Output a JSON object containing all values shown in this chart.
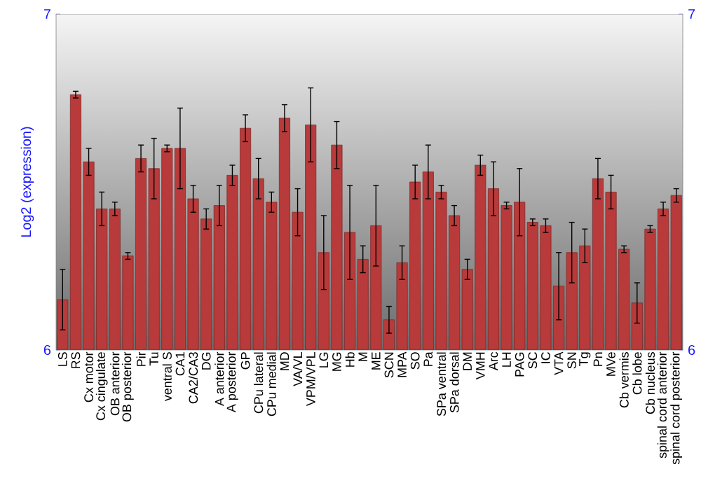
{
  "chart_data": {
    "type": "bar",
    "ylabel": "Log2 (expression)",
    "categories": [
      "LS",
      "RS",
      "Cx motor",
      "Cx cingulate",
      "OB anterior",
      "OB posterior",
      "Pir",
      "Tu",
      "ventral S",
      "CA1",
      "CA2/CA3",
      "DG",
      "A anterior",
      "A posterior",
      "GP",
      "CPu lateral",
      "CPu medial",
      "MD",
      "VA/VL",
      "VPM/VPL",
      "LG",
      "MG",
      "Hb",
      "M",
      "ME",
      "SCN",
      "MPA",
      "SO",
      "Pa",
      "SPa ventral",
      "SPa dorsal",
      "DM",
      "VMH",
      "Arc",
      "LH",
      "PAG",
      "SC",
      "IC",
      "VTA",
      "SN",
      "Tg",
      "Pn",
      "MVe",
      "Cb vermis",
      "Cb lobe",
      "Cb nucleus",
      "spinal cord anterior",
      "spinal cord posterior"
    ],
    "values": [
      6.15,
      6.76,
      6.56,
      6.42,
      6.42,
      6.28,
      6.57,
      6.54,
      6.6,
      6.6,
      6.45,
      6.39,
      6.43,
      6.52,
      6.66,
      6.51,
      6.44,
      6.69,
      6.41,
      6.67,
      6.29,
      6.61,
      6.35,
      6.27,
      6.37,
      6.09,
      6.26,
      6.5,
      6.53,
      6.47,
      6.4,
      6.24,
      6.55,
      6.48,
      6.43,
      6.44,
      6.38,
      6.37,
      6.19,
      6.29,
      6.31,
      6.51,
      6.47,
      6.3,
      6.14,
      6.36,
      6.42,
      6.46
    ],
    "errors": [
      0.09,
      0.01,
      0.04,
      0.05,
      0.02,
      0.01,
      0.04,
      0.09,
      0.01,
      0.12,
      0.04,
      0.03,
      0.06,
      0.03,
      0.04,
      0.06,
      0.03,
      0.04,
      0.07,
      0.11,
      0.11,
      0.07,
      0.14,
      0.04,
      0.12,
      0.04,
      0.05,
      0.05,
      0.08,
      0.02,
      0.03,
      0.03,
      0.03,
      0.08,
      0.01,
      0.1,
      0.01,
      0.02,
      0.1,
      0.09,
      0.05,
      0.06,
      0.05,
      0.01,
      0.06,
      0.01,
      0.02,
      0.02
    ],
    "color": "#b83a3a",
    "ylim": [
      6,
      7
    ],
    "yticks": [
      6,
      7
    ],
    "y2lim": [
      6,
      7
    ],
    "y2ticks": [
      6,
      7
    ],
    "grid": false
  }
}
